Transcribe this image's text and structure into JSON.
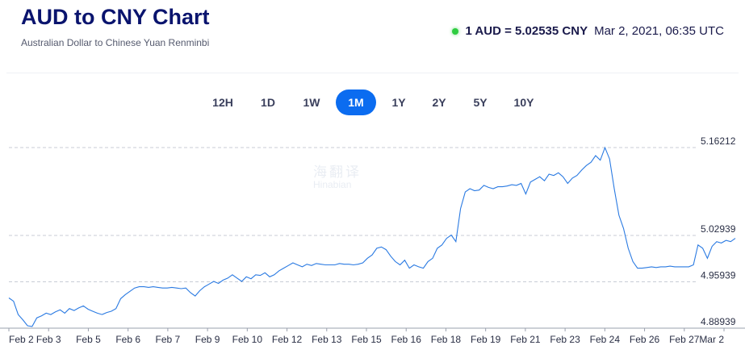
{
  "header": {
    "title": "AUD to CNY Chart",
    "subtitle": "Australian Dollar to Chinese Yuan Renminbi",
    "rate": "1 AUD = 5.02535 CNY",
    "timestamp": "Mar 2, 2021, 06:35 UTC",
    "status_color": "#2ecc40"
  },
  "tabs": [
    {
      "label": "12H",
      "active": false
    },
    {
      "label": "1D",
      "active": false
    },
    {
      "label": "1W",
      "active": false
    },
    {
      "label": "1M",
      "active": true
    },
    {
      "label": "1Y",
      "active": false
    },
    {
      "label": "2Y",
      "active": false
    },
    {
      "label": "5Y",
      "active": false
    },
    {
      "label": "10Y",
      "active": false
    }
  ],
  "watermark": {
    "cn": "海翻译",
    "en": "Hinabian"
  },
  "chart_data": {
    "type": "line",
    "title": "",
    "xlabel": "",
    "ylabel": "",
    "line_color": "#2a7ae2",
    "grid": "horizontal dashed",
    "ylim": [
      4.88939,
      5.16212
    ],
    "y_ticks": [
      "5.16212",
      "5.02939",
      "4.95939",
      "4.88939"
    ],
    "y_tick_values": [
      5.16212,
      5.02939,
      4.95939,
      4.88939
    ],
    "x_ticks": [
      "Feb 2",
      "Feb 3",
      "Feb 5",
      "Feb 6",
      "Feb 7",
      "Feb 9",
      "Feb 10",
      "Feb 12",
      "Feb 13",
      "Feb 15",
      "Feb 16",
      "Feb 18",
      "Feb 19",
      "Feb 21",
      "Feb 23",
      "Feb 24",
      "Feb 26",
      "Feb 27",
      "Mar 2"
    ],
    "series": [
      {
        "values": [
          4.935,
          4.93,
          4.91,
          4.902,
          4.893,
          4.892,
          4.905,
          4.908,
          4.912,
          4.91,
          4.914,
          4.917,
          4.912,
          4.919,
          4.916,
          4.92,
          4.923,
          4.918,
          4.915,
          4.912,
          4.91,
          4.913,
          4.915,
          4.919,
          4.934,
          4.94,
          4.945,
          4.95,
          4.952,
          4.952,
          4.951,
          4.952,
          4.951,
          4.95,
          4.95,
          4.951,
          4.95,
          4.949,
          4.95,
          4.943,
          4.938,
          4.946,
          4.952,
          4.956,
          4.96,
          4.957,
          4.962,
          4.965,
          4.97,
          4.965,
          4.96,
          4.967,
          4.964,
          4.97,
          4.969,
          4.973,
          4.967,
          4.97,
          4.976,
          4.98,
          4.984,
          4.988,
          4.985,
          4.982,
          4.986,
          4.984,
          4.987,
          4.986,
          4.985,
          4.985,
          4.985,
          4.987,
          4.986,
          4.986,
          4.985,
          4.986,
          4.988,
          4.995,
          5.0,
          5.01,
          5.012,
          5.008,
          4.998,
          4.99,
          4.985,
          4.992,
          4.98,
          4.985,
          4.982,
          4.98,
          4.99,
          4.995,
          5.01,
          5.015,
          5.025,
          5.03,
          5.02,
          5.07,
          5.095,
          5.1,
          5.097,
          5.098,
          5.105,
          5.102,
          5.1,
          5.103,
          5.103,
          5.104,
          5.106,
          5.105,
          5.108,
          5.092,
          5.11,
          5.114,
          5.118,
          5.112,
          5.122,
          5.12,
          5.124,
          5.118,
          5.108,
          5.116,
          5.12,
          5.128,
          5.135,
          5.14,
          5.15,
          5.143,
          5.162,
          5.145,
          5.1,
          5.06,
          5.04,
          5.01,
          4.99,
          4.98,
          4.98,
          4.981,
          4.982,
          4.981,
          4.982,
          4.982,
          4.983,
          4.982,
          4.982,
          4.982,
          4.982,
          4.985,
          5.015,
          5.01,
          4.995,
          5.013,
          5.02,
          5.018,
          5.022,
          5.02,
          5.025
        ]
      }
    ]
  }
}
